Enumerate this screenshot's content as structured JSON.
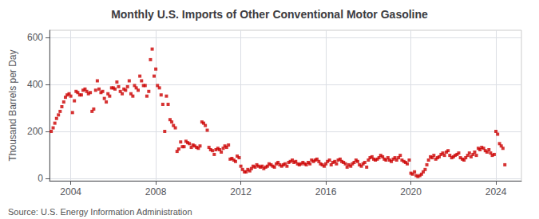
{
  "chart_data": {
    "type": "scatter",
    "title": "Monthly U.S. Imports of Other Conventional Motor Gasoline",
    "ylabel": "Thousand Barrels per Day",
    "annotations": [
      "Source: U.S. Energy Information Administration"
    ],
    "color": "#CC0000",
    "marker": "square",
    "grid": true,
    "xlim": [
      2003.0,
      2025.2
    ],
    "xticks": [
      2004,
      2008,
      2012,
      2016,
      2020,
      2024
    ],
    "ylim": [
      -10,
      630
    ],
    "yticks": [
      0,
      200,
      400,
      600
    ],
    "x": [
      2003.08,
      2003.17,
      2003.25,
      2003.33,
      2003.42,
      2003.5,
      2003.58,
      2003.67,
      2003.75,
      2003.83,
      2003.92,
      2004.0,
      2004.08,
      2004.17,
      2004.25,
      2004.33,
      2004.42,
      2004.5,
      2004.58,
      2004.67,
      2004.75,
      2004.83,
      2004.92,
      2005.0,
      2005.08,
      2005.17,
      2005.25,
      2005.33,
      2005.42,
      2005.5,
      2005.58,
      2005.67,
      2005.75,
      2005.83,
      2005.92,
      2006.0,
      2006.08,
      2006.17,
      2006.25,
      2006.33,
      2006.42,
      2006.5,
      2006.58,
      2006.67,
      2006.75,
      2006.83,
      2006.92,
      2007.0,
      2007.08,
      2007.17,
      2007.25,
      2007.33,
      2007.42,
      2007.5,
      2007.58,
      2007.67,
      2007.75,
      2007.83,
      2007.92,
      2008.0,
      2008.08,
      2008.17,
      2008.25,
      2008.33,
      2008.42,
      2008.5,
      2008.58,
      2008.67,
      2008.75,
      2008.83,
      2008.92,
      2009.0,
      2009.08,
      2009.17,
      2009.25,
      2009.33,
      2009.42,
      2009.5,
      2009.58,
      2009.67,
      2009.75,
      2009.83,
      2009.92,
      2010.0,
      2010.08,
      2010.17,
      2010.25,
      2010.33,
      2010.42,
      2010.5,
      2010.58,
      2010.67,
      2010.75,
      2010.83,
      2010.92,
      2011.0,
      2011.08,
      2011.17,
      2011.25,
      2011.33,
      2011.42,
      2011.5,
      2011.58,
      2011.67,
      2011.75,
      2011.83,
      2011.92,
      2012.0,
      2012.08,
      2012.17,
      2012.25,
      2012.33,
      2012.42,
      2012.5,
      2012.58,
      2012.67,
      2012.75,
      2012.83,
      2012.92,
      2013.0,
      2013.08,
      2013.17,
      2013.25,
      2013.33,
      2013.42,
      2013.5,
      2013.58,
      2013.67,
      2013.75,
      2013.83,
      2013.92,
      2014.0,
      2014.08,
      2014.17,
      2014.25,
      2014.33,
      2014.42,
      2014.5,
      2014.58,
      2014.67,
      2014.75,
      2014.83,
      2014.92,
      2015.0,
      2015.08,
      2015.17,
      2015.25,
      2015.33,
      2015.42,
      2015.5,
      2015.58,
      2015.67,
      2015.75,
      2015.83,
      2015.92,
      2016.0,
      2016.08,
      2016.17,
      2016.25,
      2016.33,
      2016.42,
      2016.5,
      2016.58,
      2016.67,
      2016.75,
      2016.83,
      2016.92,
      2017.0,
      2017.08,
      2017.17,
      2017.25,
      2017.33,
      2017.42,
      2017.5,
      2017.58,
      2017.67,
      2017.75,
      2017.83,
      2017.92,
      2018.0,
      2018.08,
      2018.17,
      2018.25,
      2018.33,
      2018.42,
      2018.5,
      2018.58,
      2018.67,
      2018.75,
      2018.83,
      2018.92,
      2019.0,
      2019.08,
      2019.17,
      2019.25,
      2019.33,
      2019.42,
      2019.5,
      2019.58,
      2019.67,
      2019.75,
      2019.83,
      2019.92,
      2020.0,
      2020.08,
      2020.17,
      2020.25,
      2020.33,
      2020.42,
      2020.5,
      2020.58,
      2020.67,
      2020.75,
      2020.83,
      2020.92,
      2021.0,
      2021.08,
      2021.17,
      2021.25,
      2021.33,
      2021.42,
      2021.5,
      2021.58,
      2021.67,
      2021.75,
      2021.83,
      2021.92,
      2022.0,
      2022.08,
      2022.17,
      2022.25,
      2022.33,
      2022.42,
      2022.5,
      2022.58,
      2022.67,
      2022.75,
      2022.83,
      2022.92,
      2023.0,
      2023.08,
      2023.17,
      2023.25,
      2023.33,
      2023.42,
      2023.5,
      2023.58,
      2023.67,
      2023.75,
      2023.83,
      2023.92,
      2024.0,
      2024.08,
      2024.17,
      2024.25,
      2024.33,
      2024.42
    ],
    "values": [
      200,
      215,
      235,
      255,
      270,
      285,
      305,
      325,
      345,
      355,
      360,
      350,
      280,
      330,
      370,
      365,
      355,
      355,
      375,
      380,
      370,
      360,
      365,
      285,
      295,
      375,
      415,
      380,
      365,
      370,
      340,
      325,
      360,
      350,
      385,
      385,
      380,
      410,
      390,
      370,
      360,
      380,
      375,
      390,
      415,
      360,
      350,
      395,
      385,
      375,
      435,
      415,
      395,
      395,
      350,
      370,
      505,
      550,
      435,
      465,
      395,
      385,
      355,
      315,
      200,
      350,
      315,
      250,
      240,
      225,
      215,
      115,
      125,
      155,
      135,
      135,
      158,
      152,
      148,
      132,
      142,
      138,
      132,
      128,
      138,
      240,
      235,
      225,
      205,
      132,
      122,
      118,
      102,
      122,
      128,
      122,
      112,
      128,
      138,
      132,
      142,
      82,
      85,
      78,
      72,
      95,
      88,
      52,
      38,
      28,
      28,
      38,
      32,
      42,
      52,
      48,
      58,
      52,
      48,
      52,
      42,
      48,
      52,
      62,
      58,
      52,
      48,
      62,
      68,
      58,
      52,
      58,
      62,
      52,
      68,
      72,
      78,
      68,
      72,
      62,
      58,
      62,
      68,
      62,
      58,
      68,
      62,
      78,
      72,
      78,
      82,
      72,
      62,
      58,
      52,
      62,
      72,
      78,
      58,
      68,
      72,
      62,
      78,
      82,
      72,
      68,
      62,
      48,
      58,
      52,
      62,
      68,
      78,
      72,
      58,
      52,
      62,
      68,
      48,
      78,
      88,
      92,
      82,
      78,
      82,
      88,
      98,
      92,
      82,
      78,
      88,
      78,
      72,
      82,
      88,
      78,
      88,
      98,
      78,
      72,
      68,
      62,
      78,
      22,
      18,
      28,
      12,
      8,
      12,
      18,
      28,
      38,
      58,
      78,
      92,
      88,
      98,
      82,
      88,
      92,
      102,
      108,
      98,
      112,
      118,
      98,
      88,
      92,
      98,
      102,
      108,
      88,
      82,
      78,
      88,
      98,
      108,
      92,
      102,
      112,
      98,
      128,
      122,
      132,
      128,
      118,
      112,
      122,
      108,
      98,
      102,
      200,
      188,
      148,
      138,
      128,
      58
    ]
  }
}
